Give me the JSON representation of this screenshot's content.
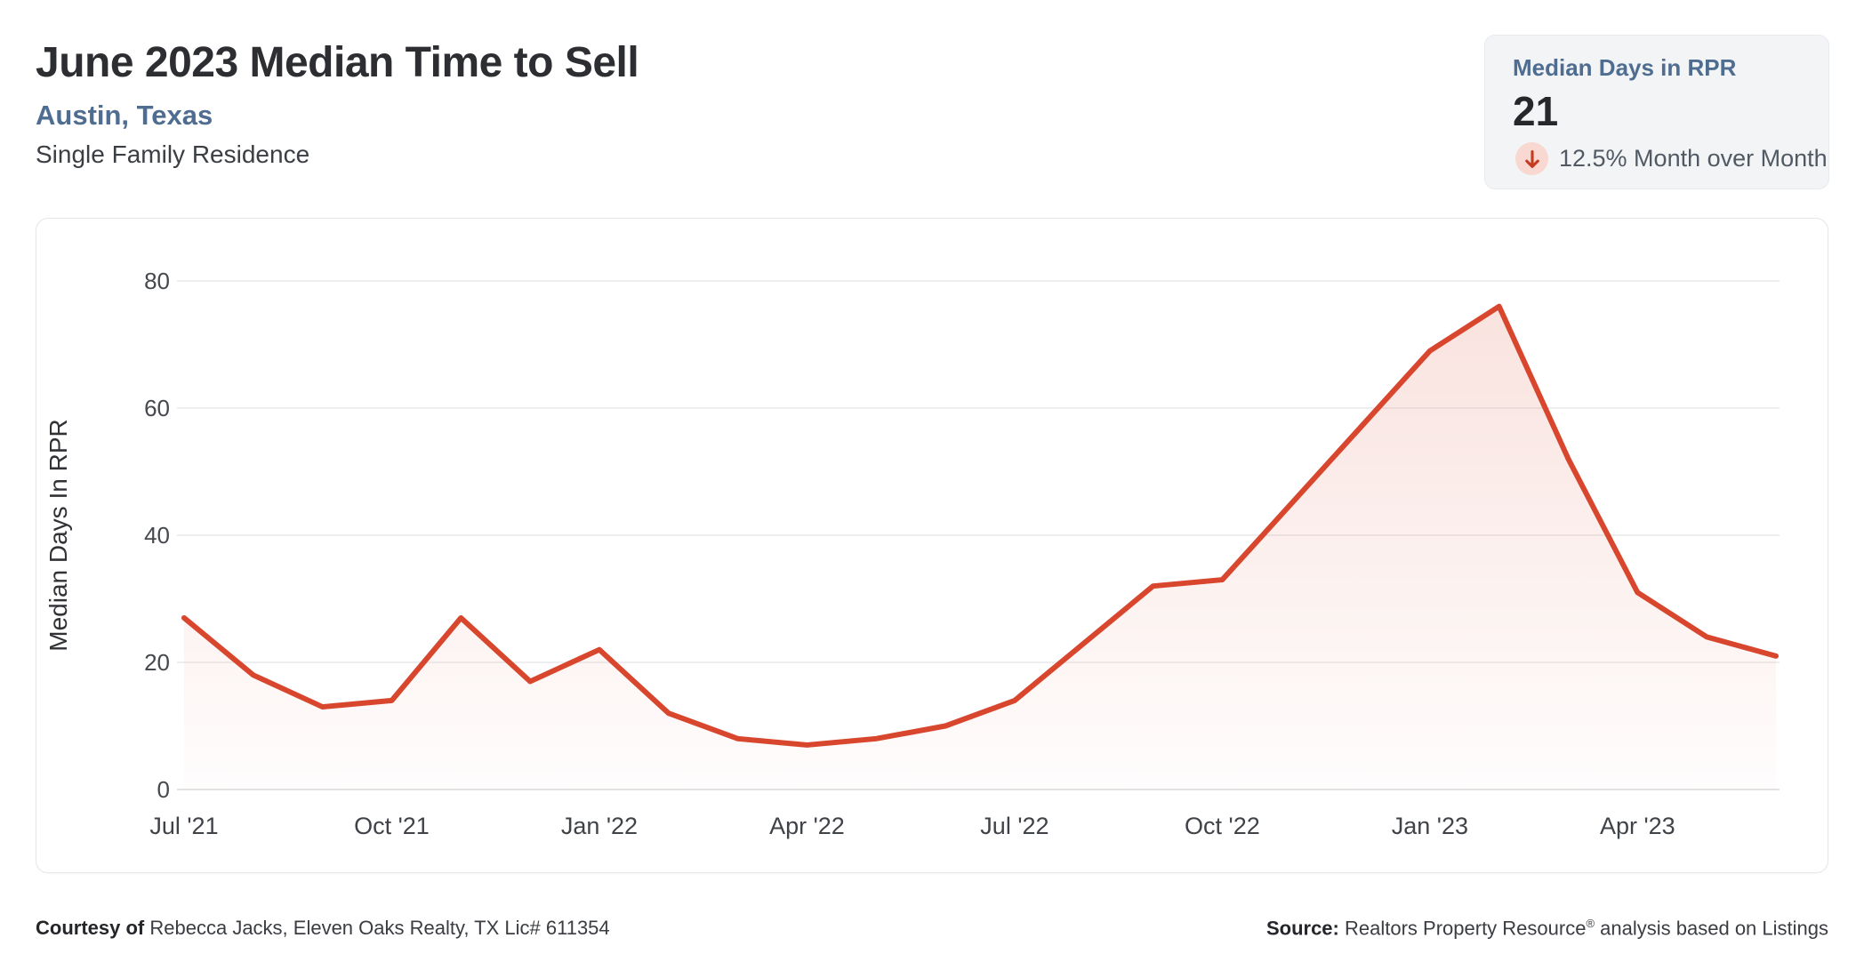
{
  "header": {
    "title": "June 2023 Median Time to Sell",
    "location": "Austin, Texas",
    "property_type": "Single Family Residence"
  },
  "stat_card": {
    "label": "Median Days in RPR",
    "value": "21",
    "direction_icon": "down-arrow",
    "change_text": "12.5% Month over Month"
  },
  "footer": {
    "courtesy_label": "Courtesy of",
    "courtesy_text": "Rebecca Jacks, Eleven Oaks Realty, TX Lic# 611354",
    "source_label": "Source:",
    "source_name": "Realtors Property Resource",
    "source_reg": "®",
    "source_rest": "analysis based on Listings"
  },
  "colors": {
    "accent_red": "#d8462d",
    "area_fill_top": "rgba(216,70,45,0.16)",
    "area_fill_bottom": "rgba(216,70,45,0.01)",
    "location_blue": "#4f6d90",
    "grid": "#e9e9eb",
    "axis_line": "#d6d8da",
    "tick_text": "#45484d",
    "down_arrow": "#c43d22",
    "down_arrow_bg": "#f8d8d0"
  },
  "chart_data": {
    "type": "area",
    "x": [
      "Jul '21",
      "Aug '21",
      "Sep '21",
      "Oct '21",
      "Nov '21",
      "Dec '21",
      "Jan '22",
      "Feb '22",
      "Mar '22",
      "Apr '22",
      "May '22",
      "Jun '22",
      "Jul '22",
      "Aug '22",
      "Sep '22",
      "Oct '22",
      "Nov '22",
      "Dec '22",
      "Jan '23",
      "Feb '23",
      "Mar '23",
      "Apr '23",
      "May '23",
      "Jun '23"
    ],
    "values": [
      27,
      18,
      13,
      14,
      27,
      17,
      22,
      12,
      8,
      7,
      8,
      10,
      14,
      23,
      32,
      33,
      45,
      57,
      69,
      76,
      52,
      31,
      24,
      21
    ],
    "ylabel": "Median Days In RPR",
    "ylim": [
      0,
      80
    ],
    "yticks": [
      0,
      20,
      40,
      60,
      80
    ],
    "xtick_indices": [
      0,
      3,
      6,
      9,
      12,
      15,
      18,
      21
    ],
    "grid": "horizontal",
    "legend": "none"
  }
}
